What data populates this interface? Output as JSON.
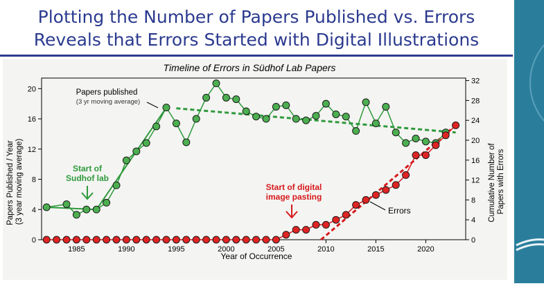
{
  "slide": {
    "title_line1": "Plotting the Number of Papers Published vs. Errors",
    "title_line2": "Reveals that Errors Started with Digital Illustrations"
  },
  "colors": {
    "green": "#2e9a3c",
    "green_fill": "#4caf50",
    "red": "#d7191c",
    "red_fill": "#e02424",
    "title": "#2b3a8f",
    "side_bar": "#2a7e9c"
  },
  "chart_data": {
    "type": "line",
    "title": "Timeline of Errors in Südhof Lab Papers",
    "xlabel": "Year of Occurrence",
    "ylabel_left": [
      "Papers Published / Year",
      "(3 year moving average)"
    ],
    "ylabel_right": [
      "Cumulative Number of",
      "Papers with Errors"
    ],
    "xlim": [
      1981.5,
      2024
    ],
    "ylim_left": [
      0,
      21.4
    ],
    "ylim_right": [
      0,
      32.5
    ],
    "x_ticks": [
      "1985",
      "1990",
      "1995",
      "2000",
      "2005",
      "2010",
      "2015",
      "2020"
    ],
    "y_ticks_left": [
      "0",
      "4",
      "8",
      "12",
      "16",
      "20"
    ],
    "y_ticks_right": [
      "0",
      "4",
      "8",
      "12",
      "16",
      "20",
      "24",
      "28",
      "32"
    ],
    "series": [
      {
        "name": "Papers published",
        "axis": "left",
        "x": [
          1982,
          1984,
          1985,
          1986,
          1987,
          1988,
          1989,
          1990,
          1991,
          1992,
          1993,
          1994,
          1995,
          1996,
          1997,
          1998,
          1999,
          2000,
          2001,
          2002,
          2003,
          2004,
          2005,
          2006,
          2007,
          2008,
          2009,
          2010,
          2011,
          2012,
          2013,
          2014,
          2015,
          2016,
          2017,
          2018,
          2019,
          2020,
          2021,
          2022
        ],
        "y": [
          4.3,
          4.7,
          3.3,
          4.0,
          4.0,
          4.9,
          7.2,
          10.5,
          11.7,
          12.8,
          15.0,
          17.5,
          15.4,
          12.9,
          16.0,
          18.8,
          20.7,
          18.8,
          18.6,
          17.0,
          16.3,
          16.0,
          17.6,
          17.8,
          16.0,
          15.8,
          16.4,
          18.0,
          16.6,
          16.3,
          14.4,
          18.2,
          15.4,
          17.6,
          14.2,
          12.8,
          13.4,
          13.0,
          12.8,
          14.2
        ]
      },
      {
        "name": "Errors",
        "axis": "right",
        "x": [
          1982,
          1983,
          1984,
          1985,
          1986,
          1987,
          1988,
          1989,
          1990,
          1991,
          1992,
          1993,
          1994,
          1995,
          1996,
          1997,
          1998,
          1999,
          2000,
          2001,
          2002,
          2003,
          2004,
          2005,
          2006,
          2007,
          2008,
          2009,
          2010,
          2011,
          2012,
          2013,
          2014,
          2015,
          2016,
          2017,
          2018,
          2019,
          2020,
          2021,
          2022,
          2023
        ],
        "y": [
          0,
          0,
          0,
          0,
          0,
          0,
          0,
          0,
          0,
          0,
          0,
          0,
          0,
          0,
          0,
          0,
          0,
          0,
          0,
          0,
          0,
          0,
          0,
          0,
          1,
          2,
          2,
          3,
          3,
          4,
          5,
          7,
          8,
          9,
          10,
          11,
          13,
          17,
          17,
          19,
          21,
          23
        ]
      }
    ],
    "trendlines": [
      {
        "series": "Papers published",
        "axis": "left",
        "x": [
          1982,
          1987
        ],
        "y": [
          4.3,
          4.0
        ],
        "style": "solid"
      },
      {
        "series": "Papers published",
        "axis": "left",
        "x": [
          1987,
          1994
        ],
        "y": [
          4.0,
          17.5
        ],
        "style": "solid"
      },
      {
        "series": "Papers published",
        "axis": "left",
        "x": [
          1995,
          2023
        ],
        "y": [
          17.4,
          14.2
        ],
        "style": "dashed"
      },
      {
        "series": "Errors",
        "axis": "right",
        "x": [
          2009.5,
          2023
        ],
        "y": [
          0,
          23
        ],
        "style": "dashed"
      }
    ],
    "annotations": {
      "papers_label": "Papers published",
      "papers_sublabel": "(3 yr moving average)",
      "lab_start_1": "Start of",
      "lab_start_2": "Sudhof lab",
      "digital_1": "Start of digital",
      "digital_2": "image pasting",
      "errors_label": "Errors"
    },
    "grid": false,
    "legend": "none"
  }
}
